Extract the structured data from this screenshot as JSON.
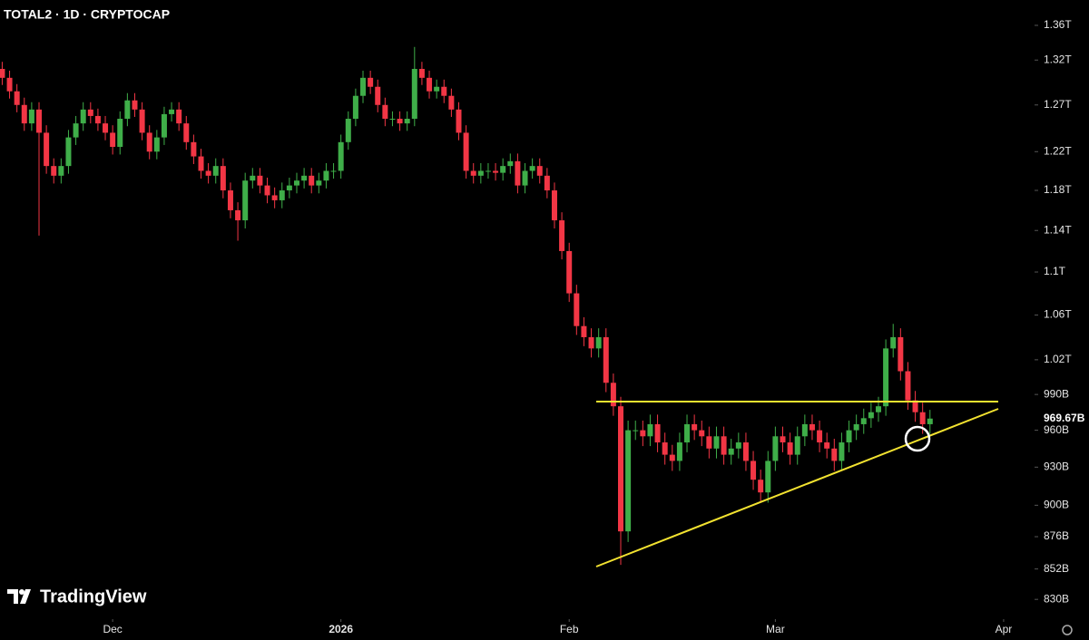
{
  "chart_data": {
    "type": "candlestick",
    "title": "TOTAL2 · 1D · CRYPTOCAP",
    "brand": "TradingView",
    "last_price_label": "969.67B",
    "log_scale": true,
    "up_color": "#3fae49",
    "down_color": "#f23645",
    "xlim": [
      -0.3,
      140.2
    ],
    "xticks": [
      {
        "value": 15,
        "label": "Dec"
      },
      {
        "value": 46,
        "label": "2026"
      },
      {
        "value": 77,
        "label": "Feb"
      },
      {
        "value": 105,
        "label": "Mar"
      },
      {
        "value": 136,
        "label": "Apr"
      }
    ],
    "ylim": [
      816,
      1390
    ],
    "yticks": [
      {
        "value": 830,
        "label": "830B"
      },
      {
        "value": 852,
        "label": "852B"
      },
      {
        "value": 876,
        "label": "876B"
      },
      {
        "value": 900,
        "label": "900B"
      },
      {
        "value": 930,
        "label": "930B"
      },
      {
        "value": 960,
        "label": "960B"
      },
      {
        "value": 990,
        "label": "990B"
      },
      {
        "value": 1020,
        "label": "1.02T"
      },
      {
        "value": 1060,
        "label": "1.06T"
      },
      {
        "value": 1100,
        "label": "1.1T"
      },
      {
        "value": 1140,
        "label": "1.14T"
      },
      {
        "value": 1180,
        "label": "1.18T"
      },
      {
        "value": 1220,
        "label": "1.22T"
      },
      {
        "value": 1270,
        "label": "1.27T"
      },
      {
        "value": 1320,
        "label": "1.32T"
      },
      {
        "value": 1360,
        "label": "1.36T"
      }
    ],
    "open": [
      1310,
      1300,
      1285,
      1270,
      1250,
      1265,
      1240,
      1205,
      1195,
      1205,
      1235,
      1250,
      1265,
      1258,
      1250,
      1240,
      1225,
      1255,
      1275,
      1265,
      1240,
      1220,
      1235,
      1260,
      1265,
      1250,
      1230,
      1215,
      1200,
      1195,
      1205,
      1180,
      1160,
      1150,
      1190,
      1195,
      1185,
      1175,
      1170,
      1180,
      1185,
      1190,
      1195,
      1185,
      1190,
      1200,
      1200,
      1230,
      1255,
      1280,
      1300,
      1290,
      1270,
      1255,
      1255,
      1250,
      1255,
      1310,
      1300,
      1285,
      1290,
      1280,
      1265,
      1240,
      1200,
      1195,
      1200,
      1200,
      1198,
      1205,
      1210,
      1185,
      1200,
      1205,
      1195,
      1180,
      1150,
      1120,
      1080,
      1050,
      1040,
      1030,
      1040,
      1000,
      980,
      880,
      960,
      960,
      955,
      965,
      950,
      940,
      935,
      950,
      965,
      960,
      955,
      945,
      955,
      940,
      945,
      950,
      935,
      920,
      910,
      935,
      955,
      950,
      940,
      955,
      965,
      960,
      950,
      945,
      935,
      950,
      960,
      965,
      970,
      975,
      980,
      1030,
      1040,
      1010,
      985,
      975,
      965
    ],
    "high": [
      1318,
      1308,
      1293,
      1278,
      1273,
      1273,
      1248,
      1213,
      1213,
      1243,
      1258,
      1273,
      1273,
      1266,
      1258,
      1248,
      1263,
      1283,
      1283,
      1273,
      1248,
      1243,
      1268,
      1273,
      1273,
      1258,
      1238,
      1223,
      1208,
      1213,
      1213,
      1188,
      1168,
      1198,
      1203,
      1203,
      1193,
      1183,
      1188,
      1193,
      1198,
      1203,
      1203,
      1198,
      1208,
      1208,
      1238,
      1263,
      1288,
      1308,
      1308,
      1298,
      1278,
      1263,
      1263,
      1263,
      1335,
      1318,
      1308,
      1298,
      1298,
      1288,
      1273,
      1248,
      1208,
      1208,
      1208,
      1208,
      1213,
      1218,
      1218,
      1208,
      1213,
      1213,
      1203,
      1188,
      1158,
      1128,
      1088,
      1058,
      1048,
      1048,
      1048,
      1008,
      988,
      968,
      968,
      968,
      973,
      973,
      958,
      948,
      958,
      973,
      973,
      968,
      963,
      963,
      963,
      953,
      958,
      958,
      943,
      928,
      943,
      963,
      963,
      958,
      963,
      973,
      973,
      968,
      958,
      953,
      958,
      968,
      973,
      978,
      983,
      988,
      1038,
      1052,
      1048,
      1018,
      993,
      983,
      977
    ],
    "low": [
      1292,
      1277,
      1262,
      1242,
      1242,
      1135,
      1197,
      1187,
      1187,
      1197,
      1227,
      1242,
      1250,
      1242,
      1232,
      1217,
      1217,
      1247,
      1257,
      1232,
      1212,
      1212,
      1227,
      1252,
      1242,
      1222,
      1207,
      1192,
      1187,
      1187,
      1172,
      1152,
      1130,
      1142,
      1182,
      1177,
      1167,
      1162,
      1162,
      1172,
      1177,
      1182,
      1177,
      1177,
      1182,
      1192,
      1192,
      1222,
      1247,
      1272,
      1282,
      1262,
      1247,
      1247,
      1242,
      1242,
      1247,
      1292,
      1277,
      1277,
      1272,
      1257,
      1232,
      1192,
      1187,
      1187,
      1192,
      1190,
      1190,
      1197,
      1177,
      1177,
      1192,
      1187,
      1172,
      1142,
      1112,
      1072,
      1042,
      1032,
      1022,
      1022,
      992,
      972,
      855,
      872,
      952,
      947,
      947,
      942,
      932,
      927,
      927,
      942,
      952,
      947,
      937,
      937,
      932,
      932,
      937,
      927,
      912,
      902,
      902,
      927,
      942,
      932,
      932,
      947,
      952,
      942,
      937,
      927,
      927,
      942,
      952,
      957,
      962,
      967,
      972,
      1022,
      1002,
      977,
      967,
      957,
      957
    ],
    "close": [
      1300,
      1285,
      1270,
      1250,
      1265,
      1240,
      1205,
      1195,
      1205,
      1235,
      1250,
      1265,
      1258,
      1250,
      1240,
      1225,
      1255,
      1275,
      1265,
      1240,
      1220,
      1235,
      1260,
      1265,
      1250,
      1230,
      1215,
      1200,
      1195,
      1205,
      1180,
      1160,
      1150,
      1190,
      1195,
      1185,
      1175,
      1170,
      1180,
      1185,
      1190,
      1195,
      1185,
      1190,
      1200,
      1200,
      1230,
      1255,
      1280,
      1300,
      1290,
      1270,
      1255,
      1255,
      1250,
      1255,
      1310,
      1300,
      1285,
      1290,
      1280,
      1265,
      1240,
      1200,
      1195,
      1200,
      1200,
      1198,
      1205,
      1210,
      1185,
      1200,
      1205,
      1195,
      1180,
      1150,
      1120,
      1080,
      1050,
      1040,
      1030,
      1040,
      1000,
      980,
      880,
      960,
      960,
      955,
      965,
      950,
      940,
      935,
      950,
      965,
      960,
      955,
      945,
      955,
      940,
      945,
      950,
      935,
      920,
      910,
      935,
      955,
      950,
      940,
      955,
      965,
      960,
      950,
      945,
      935,
      950,
      960,
      965,
      970,
      975,
      980,
      1030,
      1040,
      1010,
      985,
      975,
      965,
      969.67
    ]
  }
}
